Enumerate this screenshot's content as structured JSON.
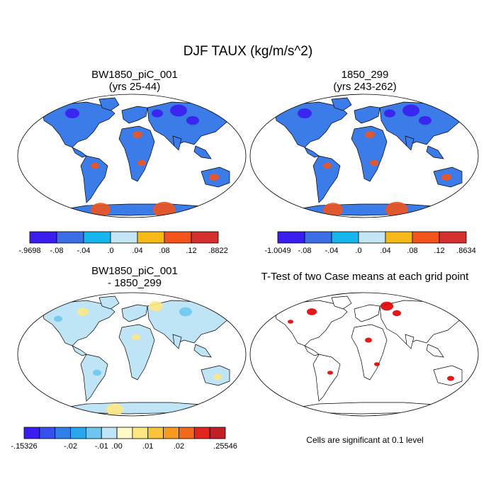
{
  "main_title": "DJF TAUX (kg/m/s^2)",
  "panels": {
    "p1": {
      "title_line1": "BW1850_piC_001",
      "title_line2": "(yrs 25-44)"
    },
    "p2": {
      "title_line1": "1850_299",
      "title_line2": "(yrs 243-262)"
    },
    "p3": {
      "title_line1": "BW1850_piC_001",
      "title_line2": "- 1850_299"
    },
    "p4": {
      "title": "T-Test of two Case means at each grid point"
    }
  },
  "colorbars": {
    "cb1": {
      "colors": [
        "#3a1ef0",
        "#3c6fe6",
        "#17b5ee",
        "#c4e6f4",
        "#f5ba18",
        "#f2541c",
        "#d4302e"
      ],
      "labels": [
        "-.9698",
        "-.08",
        "-.04",
        ".0",
        ".04",
        ".08",
        ".12",
        ".8822"
      ]
    },
    "cb2": {
      "colors": [
        "#3a1ef0",
        "#3c6fe6",
        "#17b5ee",
        "#c4e6f4",
        "#f5ba18",
        "#f2541c",
        "#d4302e"
      ],
      "labels": [
        "-1.0049",
        "-.08",
        "-.04",
        ".0",
        ".04",
        ".08",
        ".12",
        ".8634"
      ]
    },
    "cb3": {
      "colors": [
        "#3a1ef0",
        "#3550ee",
        "#2f7fea",
        "#2aa6ec",
        "#6cc6f0",
        "#bfe4f6",
        "#fffbc6",
        "#fde783",
        "#fbc33c",
        "#f79a1e",
        "#f06a1a",
        "#e2251f",
        "#c21f26"
      ],
      "labels": [
        "-.15326",
        "-.02",
        "-.01",
        ".00",
        ".01",
        ".02",
        ".25546"
      ]
    }
  },
  "significance_note": "Cells are significant at 0.1 level",
  "map_fill": {
    "p1": {
      "land": "#3c7ce8",
      "accent_warm": "#f2541c",
      "accent_cold": "#3a1ef0"
    },
    "p2": {
      "land": "#3c7ce8",
      "accent_warm": "#f2541c",
      "accent_cold": "#3a1ef0"
    },
    "p3": {
      "land": "#bfe4f6",
      "accent_warm": "#fde783",
      "accent_cold": "#6cc6f0"
    },
    "p4": {
      "land": "#ffffff",
      "accent_warm": "#e00000",
      "accent_cold": "#e00000"
    }
  }
}
